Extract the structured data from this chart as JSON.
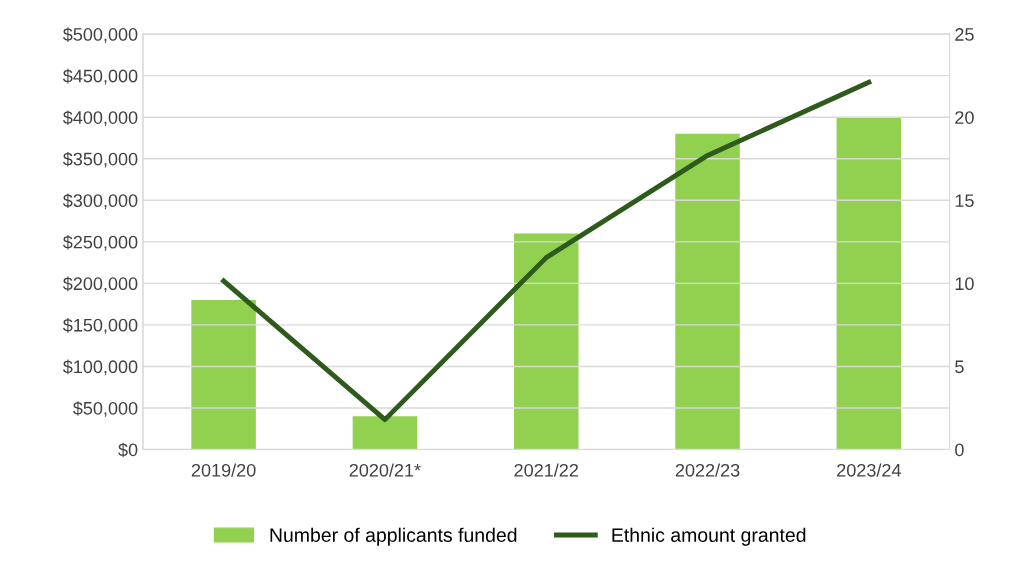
{
  "chart_data": {
    "type": "bar",
    "categories": [
      "2019/20",
      "2020/21*",
      "2021/22",
      "2022/23",
      "2023/24"
    ],
    "series": [
      {
        "name": "Number of applicants funded",
        "axis": "y2",
        "color": "#92d050",
        "values": [
          9,
          2,
          13,
          19,
          20
        ]
      },
      {
        "name": "Ethnic amount granted",
        "type": "line",
        "color": "#2e5a1c",
        "values": [
          203000,
          36000,
          231000,
          354000,
          442000
        ]
      }
    ],
    "ylim": [
      0,
      500000
    ],
    "yticks": [
      {
        "value": 0,
        "label": "$0"
      },
      {
        "value": 50000,
        "label": "$50,000"
      },
      {
        "value": 100000,
        "label": "$100,000"
      },
      {
        "value": 150000,
        "label": "$150,000"
      },
      {
        "value": 200000,
        "label": "$200,000"
      },
      {
        "value": 250000,
        "label": "$250,000"
      },
      {
        "value": 300000,
        "label": "$300,000"
      },
      {
        "value": 350000,
        "label": "$350,000"
      },
      {
        "value": 400000,
        "label": "$400,000"
      },
      {
        "value": 450000,
        "label": "$450,000"
      },
      {
        "value": 500000,
        "label": "$500,000"
      }
    ],
    "y2lim": [
      0,
      25
    ],
    "y2ticks": [
      0,
      5,
      10,
      15,
      20,
      25
    ],
    "grid": "y",
    "legend": "bottom",
    "marker": "none",
    "line_style": "solid"
  }
}
